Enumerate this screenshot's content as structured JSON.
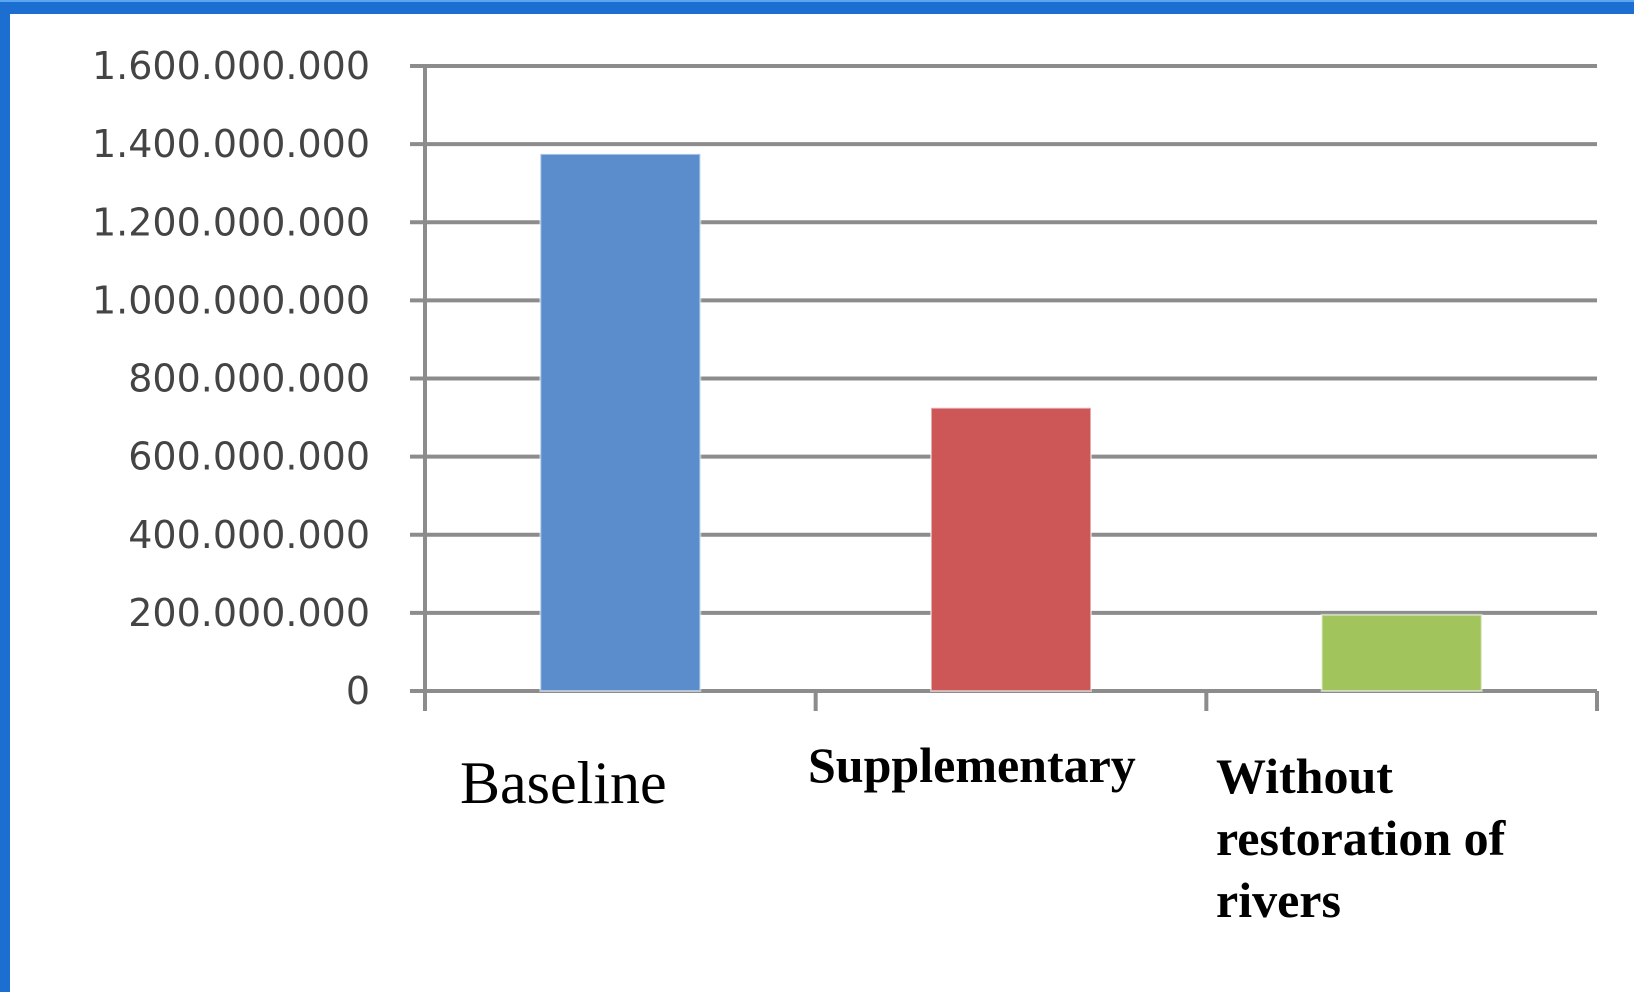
{
  "chart_data": {
    "type": "bar",
    "categories": [
      "Baseline",
      "Supplementary",
      "Without restoration of rivers"
    ],
    "category_lines": [
      [
        "Baseline"
      ],
      [
        "Supplementary"
      ],
      [
        "Without",
        "restoration of",
        "rivers"
      ]
    ],
    "values": [
      1375000000,
      725000000,
      195000000
    ],
    "colors": [
      "#5b8dcc",
      "#cd5756",
      "#a2c45c"
    ],
    "ylim": [
      0,
      1600000000
    ],
    "yticks": [
      0,
      200000000,
      400000000,
      600000000,
      800000000,
      1000000000,
      1200000000,
      1400000000,
      1600000000
    ],
    "ytick_labels": [
      "0",
      "200.000.000",
      "400.000.000",
      "600.000.000",
      "800.000.000",
      "1.000.000.000",
      "1.200.000.000",
      "1.400.000.000",
      "1.600.000.000"
    ],
    "grid": true,
    "title": "",
    "xlabel": "",
    "ylabel": ""
  }
}
